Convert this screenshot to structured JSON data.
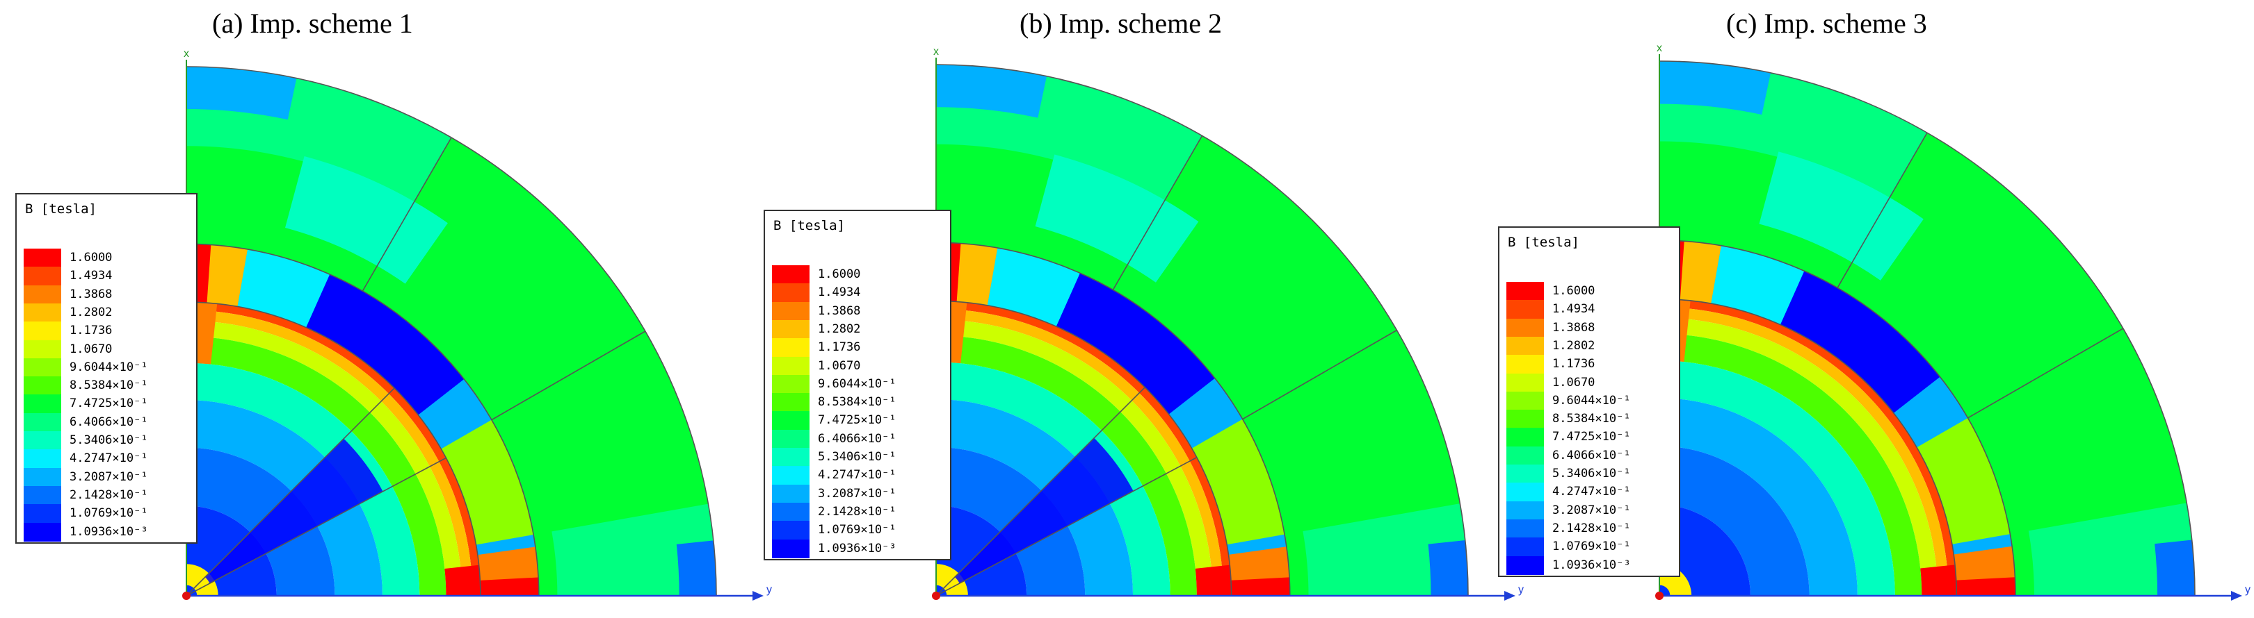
{
  "figure": {
    "panels": [
      {
        "title": "(a) Imp. scheme 1"
      },
      {
        "title": "(b) Imp. scheme 2"
      },
      {
        "title": "(c) Imp. scheme 3"
      }
    ],
    "legend": {
      "title": "B [tesla]",
      "levels": [
        {
          "label": "1.6000",
          "color": "#ff0000"
        },
        {
          "label": "1.4934",
          "color": "#ff4500"
        },
        {
          "label": "1.3868",
          "color": "#ff7f00"
        },
        {
          "label": "1.2802",
          "color": "#ffbf00"
        },
        {
          "label": "1.1736",
          "color": "#ffef00"
        },
        {
          "label": "1.0670",
          "color": "#ccff00"
        },
        {
          "label": "9.6044×10⁻¹",
          "color": "#8cff00"
        },
        {
          "label": "8.5384×10⁻¹",
          "color": "#4dff00"
        },
        {
          "label": "7.4725×10⁻¹",
          "color": "#00ff33"
        },
        {
          "label": "6.4066×10⁻¹",
          "color": "#00ff80"
        },
        {
          "label": "5.3406×10⁻¹",
          "color": "#00ffbf"
        },
        {
          "label": "4.2747×10⁻¹",
          "color": "#00efff"
        },
        {
          "label": "3.2087×10⁻¹",
          "color": "#00b0ff"
        },
        {
          "label": "2.1428×10⁻¹",
          "color": "#0070ff"
        },
        {
          "label": "1.0769×10⁻¹",
          "color": "#0033ff"
        },
        {
          "label": "1.0936×10⁻³",
          "color": "#0000ff"
        }
      ]
    },
    "axis_letters": {
      "x": "x",
      "y": "y"
    },
    "colors": {
      "axis": "#1f3fd8",
      "origin": "#e01010",
      "outline": "#555555"
    }
  }
}
